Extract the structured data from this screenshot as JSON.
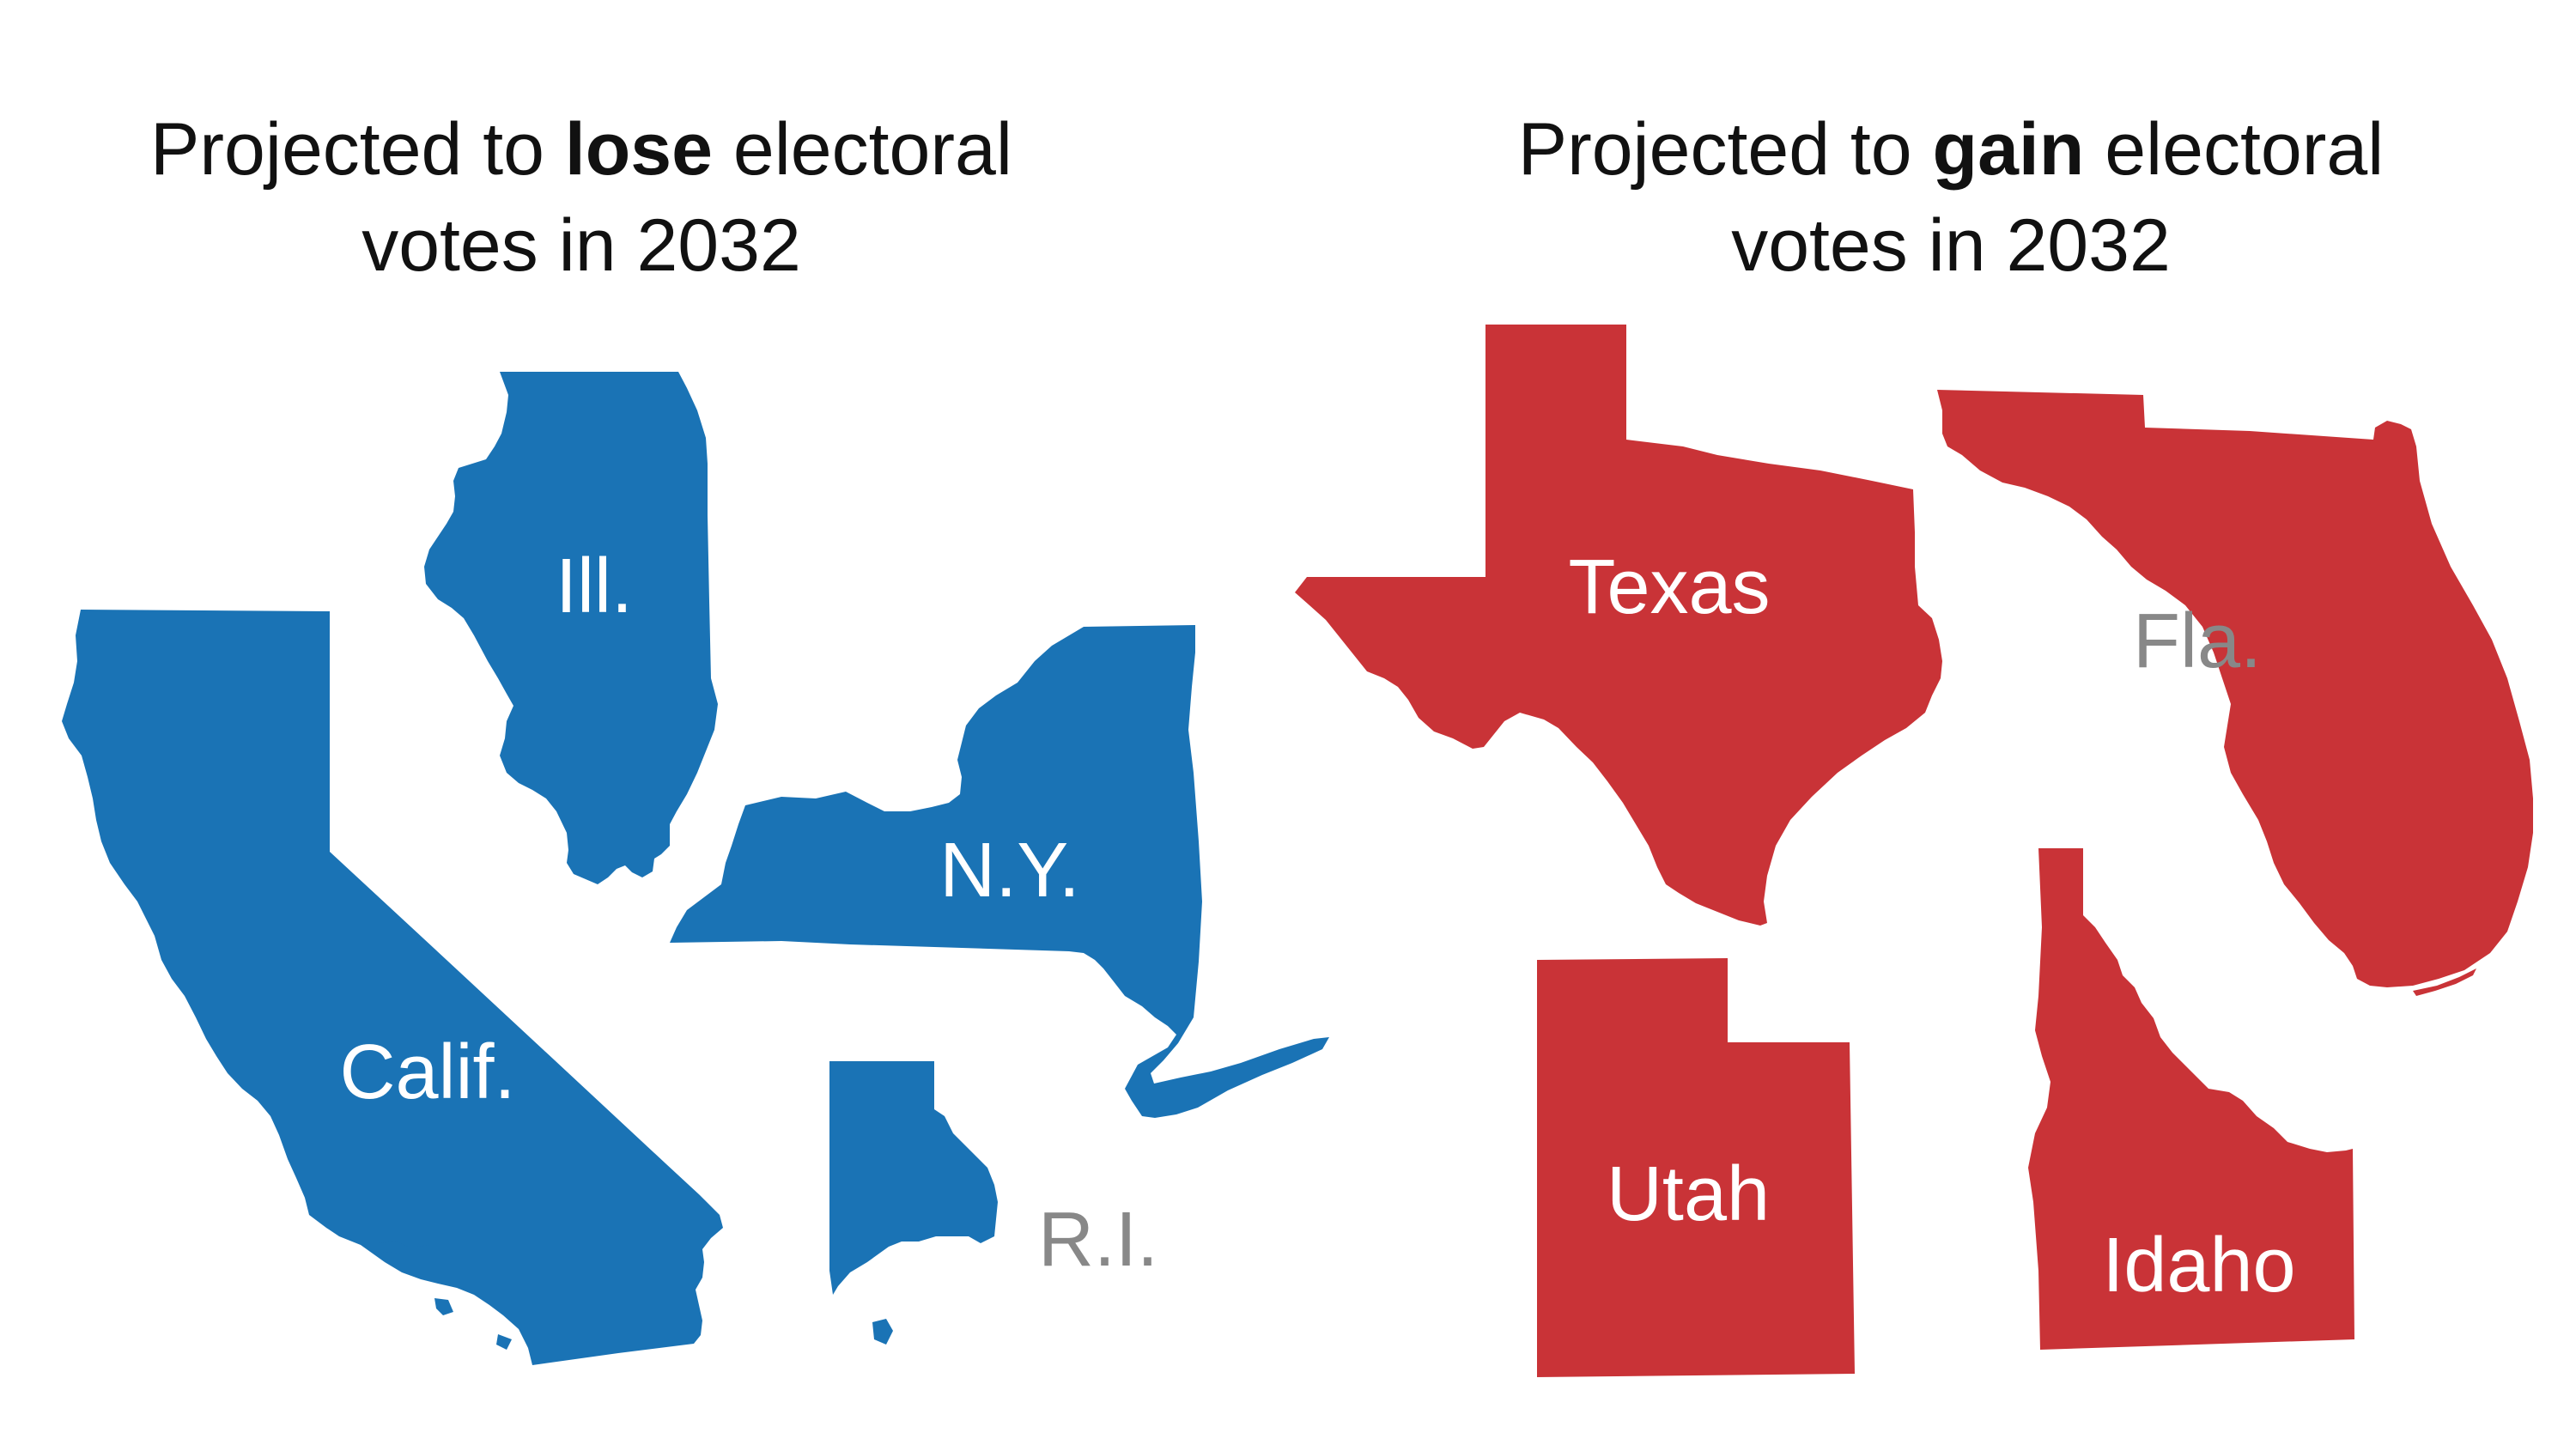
{
  "panels": {
    "lose": {
      "title_prefix": "Projected to ",
      "title_emphasis": "lose",
      "title_suffix": " electoral",
      "title_line2": "votes in 2032"
    },
    "gain": {
      "title_prefix": "Projected to ",
      "title_emphasis": "gain",
      "title_suffix": " electoral",
      "title_line2": "votes in 2032"
    }
  },
  "colors": {
    "lose": "#1a73b5",
    "gain": "#c93337",
    "label_on_shape": "#ffffff",
    "label_off_shape": "#888888"
  },
  "states": {
    "illinois": {
      "label": "Ill.",
      "group": "lose"
    },
    "california": {
      "label": "Calif.",
      "group": "lose"
    },
    "new_york": {
      "label": "N.Y.",
      "group": "lose"
    },
    "rhode_island": {
      "label": "R.I.",
      "group": "lose"
    },
    "texas": {
      "label": "Texas",
      "group": "gain"
    },
    "florida": {
      "label": "Fla.",
      "group": "gain"
    },
    "utah": {
      "label": "Utah",
      "group": "gain"
    },
    "idaho": {
      "label": "Idaho",
      "group": "gain"
    }
  }
}
